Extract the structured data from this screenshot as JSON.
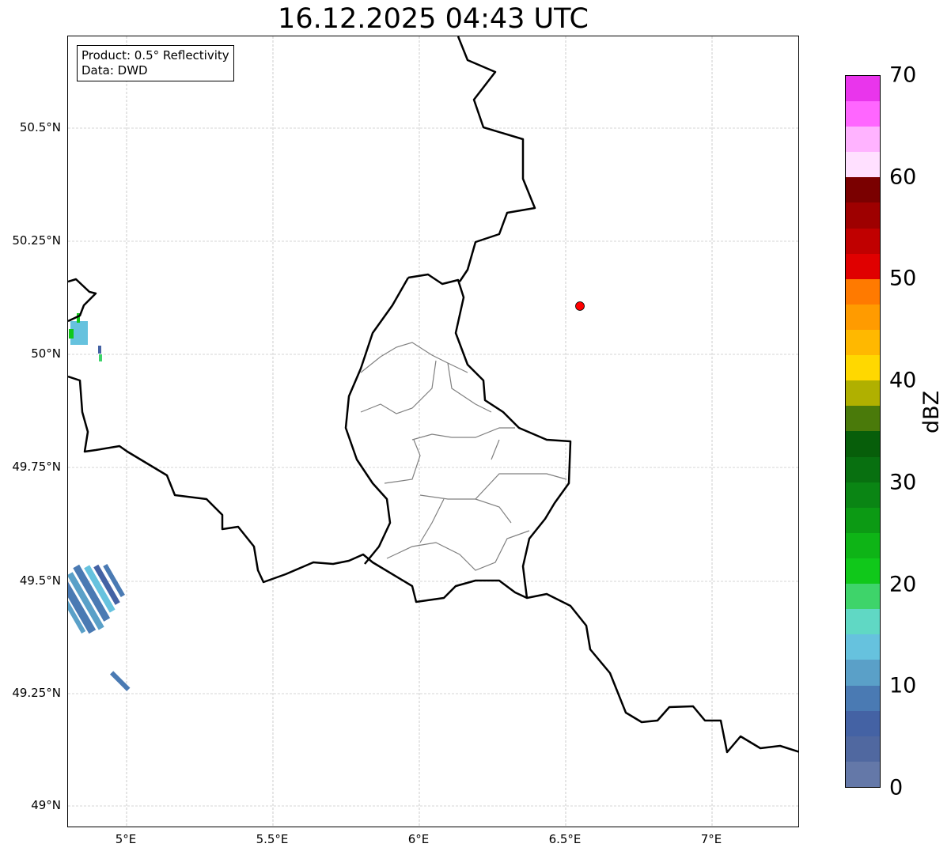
{
  "title": "16.12.2025 04:43 UTC",
  "info": {
    "line1": "Product: 0.5° Reflectivity",
    "line2": "Data: DWD"
  },
  "x_ticks": [
    "5°E",
    "5.5°E",
    "6°E",
    "6.5°E",
    "7°E"
  ],
  "y_ticks": [
    "50.5°N",
    "50.25°N",
    "50°N",
    "49.75°N",
    "49.5°N",
    "49.25°N",
    "49°N"
  ],
  "marker": {
    "label": "radar-site",
    "color": "#ff0000",
    "lon": 6.55,
    "lat": 50.11
  },
  "colorbar": {
    "label": "dBZ",
    "ticks": [
      "0",
      "10",
      "20",
      "30",
      "40",
      "50",
      "60",
      "70"
    ],
    "range": [
      0,
      70
    ],
    "step": 2.5,
    "colors": [
      "#6478a8",
      "#5068a0",
      "#4462a4",
      "#4a7ab3",
      "#5aa0c8",
      "#66c2de",
      "#60d8c4",
      "#3ed46a",
      "#10c81a",
      "#0eb416",
      "#0c9a14",
      "#0a8514",
      "#087010",
      "#075e0a",
      "#4a7a0a",
      "#b0b000",
      "#ffd800",
      "#ffb800",
      "#ff9b00",
      "#ff7a00",
      "#e00000",
      "#c00000",
      "#9e0000",
      "#7a0000",
      "#ffe0ff",
      "#ffb3ff",
      "#ff66ff",
      "#e935ec"
    ]
  }
}
